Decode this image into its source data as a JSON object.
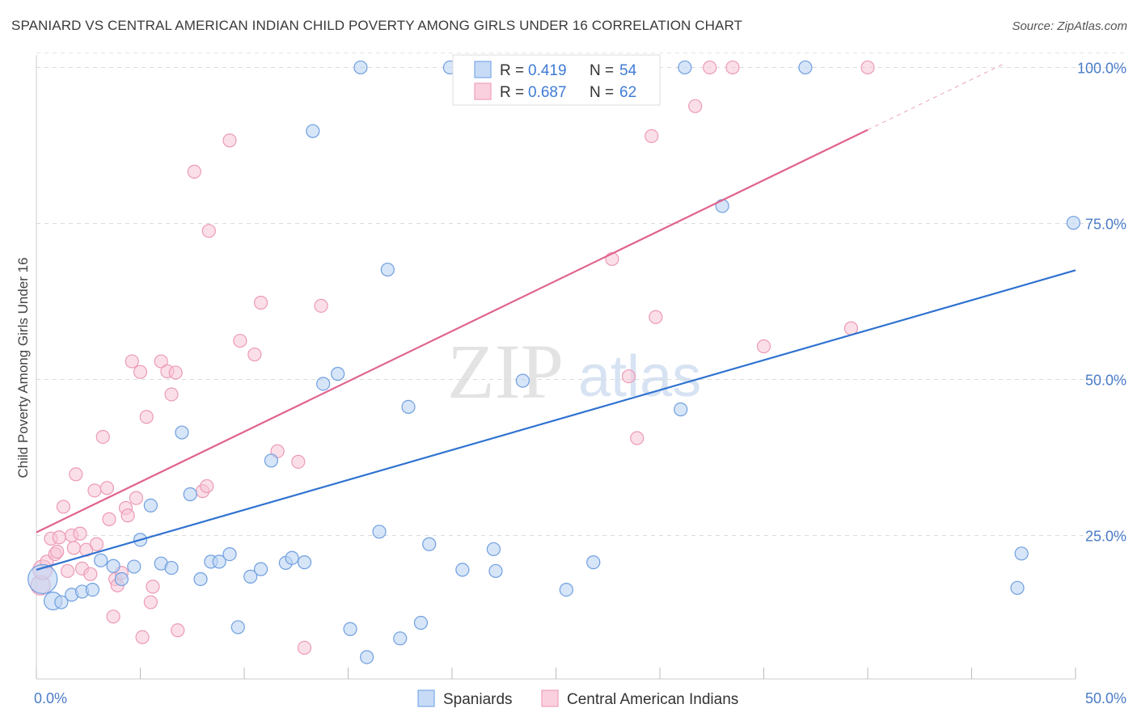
{
  "title": "SPANIARD VS CENTRAL AMERICAN INDIAN CHILD POVERTY AMONG GIRLS UNDER 16 CORRELATION CHART",
  "source": "Source: ZipAtlas.com",
  "watermark": {
    "zip": "ZIP",
    "atlas": "atlas"
  },
  "colors": {
    "blue": "#7aaae8",
    "blue_line": "#2f72d0",
    "pink": "#f0a0bb",
    "pink_line": "#e0638f",
    "tick_text": "#4a7cc7"
  },
  "legend_top": {
    "rows": [
      {
        "r_label": "R =",
        "r_value": "0.419",
        "n_label": "N =",
        "n_value": "54"
      },
      {
        "r_label": "R =",
        "r_value": "0.687",
        "n_label": "N =",
        "n_value": "62"
      }
    ]
  },
  "legend_bottom": [
    "Spaniards",
    "Central American Indians"
  ],
  "chart_data": {
    "type": "scatter",
    "title": "SPANIARD VS CENTRAL AMERICAN INDIAN CHILD POVERTY AMONG GIRLS UNDER 16 CORRELATION CHART",
    "xlabel": "",
    "ylabel": "Child Poverty Among Girls Under 16",
    "xlim": [
      0,
      50
    ],
    "ylim": [
      2,
      102
    ],
    "x_tick_labels": [
      "0.0%",
      "50.0%"
    ],
    "y_tick_labels": [
      "100.0%",
      "75.0%",
      "50.0%",
      "25.0%"
    ],
    "y_ticks": [
      100,
      75,
      50,
      25
    ],
    "grid": true,
    "legend_position": "top-center",
    "series": [
      {
        "name": "Spaniards",
        "r": 0.419,
        "n": 54,
        "trend": {
          "x": [
            0,
            50
          ],
          "y": [
            19.5,
            67.5
          ]
        },
        "points": [
          [
            0.3,
            18.0,
            18
          ],
          [
            0.8,
            14.5,
            11
          ],
          [
            1.2,
            14.3,
            8
          ],
          [
            1.7,
            15.5,
            8
          ],
          [
            2.2,
            16.0,
            8
          ],
          [
            2.7,
            16.3,
            8
          ],
          [
            3.1,
            21.0,
            8
          ],
          [
            3.7,
            20.1,
            8
          ],
          [
            4.1,
            18.0,
            8
          ],
          [
            4.7,
            20.0,
            8
          ],
          [
            5.0,
            24.3,
            8
          ],
          [
            5.5,
            29.8,
            8
          ],
          [
            6.0,
            20.5,
            8
          ],
          [
            6.5,
            19.8,
            8
          ],
          [
            7.0,
            41.5,
            8
          ],
          [
            7.4,
            31.6,
            8
          ],
          [
            7.9,
            18.0,
            8
          ],
          [
            8.4,
            20.8,
            8
          ],
          [
            8.8,
            20.8,
            8
          ],
          [
            9.3,
            22.0,
            8
          ],
          [
            9.7,
            10.3,
            8
          ],
          [
            10.3,
            18.4,
            8
          ],
          [
            10.8,
            19.6,
            8
          ],
          [
            11.3,
            37.0,
            8
          ],
          [
            12.0,
            20.6,
            8
          ],
          [
            12.3,
            21.4,
            8
          ],
          [
            12.9,
            20.7,
            8
          ],
          [
            13.3,
            89.8,
            8
          ],
          [
            13.8,
            49.3,
            8
          ],
          [
            14.5,
            50.9,
            8
          ],
          [
            15.1,
            10.0,
            8
          ],
          [
            15.6,
            100.0,
            8
          ],
          [
            15.9,
            5.5,
            8
          ],
          [
            16.5,
            25.6,
            8
          ],
          [
            16.9,
            67.6,
            8
          ],
          [
            17.5,
            8.5,
            8
          ],
          [
            17.9,
            45.6,
            8
          ],
          [
            18.5,
            11.0,
            8
          ],
          [
            18.9,
            23.6,
            8
          ],
          [
            19.9,
            100.0,
            8
          ],
          [
            20.5,
            19.5,
            8
          ],
          [
            22.0,
            22.8,
            8
          ],
          [
            22.1,
            19.3,
            8
          ],
          [
            23.4,
            49.8,
            8
          ],
          [
            25.2,
            100.0,
            8
          ],
          [
            25.5,
            16.3,
            8
          ],
          [
            26.8,
            20.7,
            8
          ],
          [
            31.0,
            45.2,
            8
          ],
          [
            31.2,
            100.0,
            8
          ],
          [
            33.0,
            77.8,
            8
          ],
          [
            37.0,
            100.0,
            8
          ],
          [
            47.2,
            16.6,
            8
          ],
          [
            47.4,
            22.1,
            8
          ],
          [
            49.9,
            75.1,
            8
          ]
        ]
      },
      {
        "name": "Central American Indians",
        "r": 0.687,
        "n": 62,
        "trend": {
          "x": [
            0,
            40
          ],
          "y": [
            25.5,
            90.0
          ]
        },
        "trend_dashed": {
          "x": [
            40,
            46.5
          ],
          "y": [
            90.0,
            100.5
          ]
        },
        "points": [
          [
            0.2,
            17.0,
            12
          ],
          [
            0.3,
            19.5,
            12
          ],
          [
            0.5,
            20.8,
            8
          ],
          [
            0.7,
            24.5,
            8
          ],
          [
            0.9,
            22.0,
            8
          ],
          [
            1.0,
            22.4,
            8
          ],
          [
            1.1,
            24.7,
            8
          ],
          [
            1.3,
            29.6,
            8
          ],
          [
            1.5,
            19.3,
            8
          ],
          [
            1.7,
            25.0,
            8
          ],
          [
            1.8,
            23.0,
            8
          ],
          [
            1.9,
            34.8,
            8
          ],
          [
            2.1,
            25.3,
            8
          ],
          [
            2.2,
            19.7,
            8
          ],
          [
            2.4,
            22.7,
            8
          ],
          [
            2.6,
            18.8,
            8
          ],
          [
            2.8,
            32.2,
            8
          ],
          [
            2.9,
            23.6,
            8
          ],
          [
            3.2,
            40.8,
            8
          ],
          [
            3.4,
            32.6,
            8
          ],
          [
            3.5,
            27.6,
            8
          ],
          [
            3.7,
            12.0,
            8
          ],
          [
            3.8,
            18.0,
            8
          ],
          [
            3.9,
            17.0,
            8
          ],
          [
            4.1,
            19.0,
            8
          ],
          [
            4.3,
            29.4,
            8
          ],
          [
            4.4,
            28.2,
            8
          ],
          [
            4.6,
            52.9,
            8
          ],
          [
            4.8,
            31.0,
            8
          ],
          [
            5.0,
            51.2,
            8
          ],
          [
            5.1,
            8.7,
            8
          ],
          [
            5.3,
            44.0,
            8
          ],
          [
            5.5,
            14.3,
            8
          ],
          [
            5.6,
            16.8,
            8
          ],
          [
            6.0,
            52.9,
            8
          ],
          [
            6.3,
            51.3,
            8
          ],
          [
            6.5,
            47.6,
            8
          ],
          [
            6.7,
            51.1,
            8
          ],
          [
            6.8,
            9.8,
            8
          ],
          [
            7.6,
            83.3,
            8
          ],
          [
            8.0,
            32.1,
            8
          ],
          [
            8.2,
            32.9,
            8
          ],
          [
            8.3,
            73.8,
            8
          ],
          [
            9.3,
            88.3,
            8
          ],
          [
            9.8,
            56.2,
            8
          ],
          [
            10.5,
            54.0,
            8
          ],
          [
            10.8,
            62.3,
            8
          ],
          [
            11.6,
            38.5,
            8
          ],
          [
            12.6,
            36.8,
            8
          ],
          [
            12.9,
            7.0,
            8
          ],
          [
            13.7,
            61.8,
            8
          ],
          [
            27.7,
            69.3,
            8
          ],
          [
            28.5,
            50.5,
            8
          ],
          [
            28.9,
            40.6,
            8
          ],
          [
            29.6,
            89.0,
            8
          ],
          [
            29.8,
            60.0,
            8
          ],
          [
            31.7,
            93.8,
            8
          ],
          [
            32.4,
            100.0,
            8
          ],
          [
            33.5,
            100.0,
            8
          ],
          [
            35.0,
            55.3,
            8
          ],
          [
            39.2,
            58.2,
            8
          ],
          [
            40.0,
            100.0,
            8
          ]
        ]
      }
    ]
  }
}
